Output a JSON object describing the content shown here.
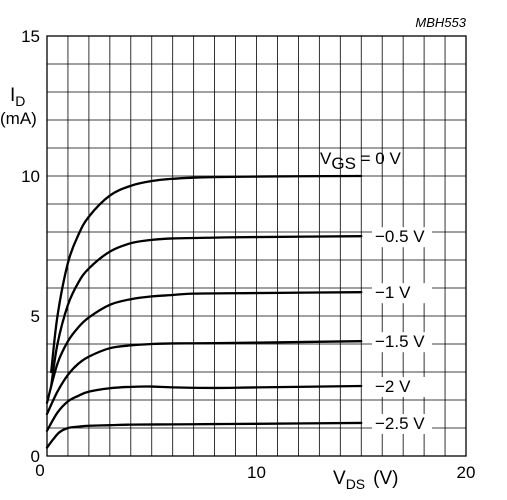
{
  "figure_code": "MBH553",
  "chart_data": {
    "type": "line",
    "title": "",
    "xlabel": {
      "main": "V",
      "sub": "DS",
      "unit": "(V)"
    },
    "ylabel": {
      "main": "I",
      "sub": "D",
      "unit": "(mA)"
    },
    "xlim": [
      0,
      20
    ],
    "ylim": [
      0,
      15
    ],
    "x_ticks": [
      "0",
      "10",
      "20"
    ],
    "y_ticks": [
      "0",
      "5",
      "10",
      "15"
    ],
    "grid": true,
    "series": [
      {
        "name": "VGS = 0 V",
        "label_main": "V",
        "label_sub": "GS",
        "label_rest": " = 0 V",
        "x": [
          0.2,
          0.5,
          1,
          1.5,
          2,
          3,
          4,
          5,
          6,
          7,
          8,
          10,
          12,
          15
        ],
        "y": [
          3.0,
          5.0,
          6.9,
          7.9,
          8.55,
          9.3,
          9.65,
          9.82,
          9.9,
          9.94,
          9.96,
          9.98,
          9.99,
          10.0
        ]
      },
      {
        "name": "−0.5 V",
        "x": [
          0.2,
          0.5,
          1,
          1.5,
          2,
          3,
          4,
          5,
          6,
          8,
          10,
          15
        ],
        "y": [
          2.5,
          4.0,
          5.4,
          6.2,
          6.7,
          7.3,
          7.6,
          7.72,
          7.77,
          7.8,
          7.82,
          7.85
        ]
      },
      {
        "name": "−1 V",
        "x": [
          0,
          0.5,
          1,
          1.5,
          2,
          3,
          4,
          5,
          6,
          7,
          10,
          15
        ],
        "y": [
          1.9,
          3.3,
          4.1,
          4.6,
          4.95,
          5.4,
          5.6,
          5.7,
          5.75,
          5.8,
          5.82,
          5.85
        ]
      },
      {
        "name": "−1.5 V",
        "x": [
          0,
          0.5,
          1,
          1.5,
          2,
          3,
          4,
          5,
          6,
          8,
          10,
          15
        ],
        "y": [
          1.5,
          2.3,
          2.9,
          3.3,
          3.55,
          3.85,
          3.95,
          4.0,
          4.02,
          4.03,
          4.05,
          4.1
        ]
      },
      {
        "name": "−2 V",
        "x": [
          0,
          0.5,
          1,
          1.5,
          2,
          3,
          4,
          5,
          6,
          8,
          10,
          15
        ],
        "y": [
          0.9,
          1.55,
          1.95,
          2.15,
          2.3,
          2.42,
          2.47,
          2.48,
          2.45,
          2.43,
          2.45,
          2.5
        ]
      },
      {
        "name": "−2.5 V",
        "x": [
          0,
          0.3,
          0.6,
          1,
          1.5,
          2,
          3,
          4,
          6,
          8,
          10,
          15
        ],
        "y": [
          0.3,
          0.6,
          0.85,
          1.0,
          1.05,
          1.08,
          1.1,
          1.12,
          1.13,
          1.14,
          1.15,
          1.18
        ]
      }
    ]
  }
}
